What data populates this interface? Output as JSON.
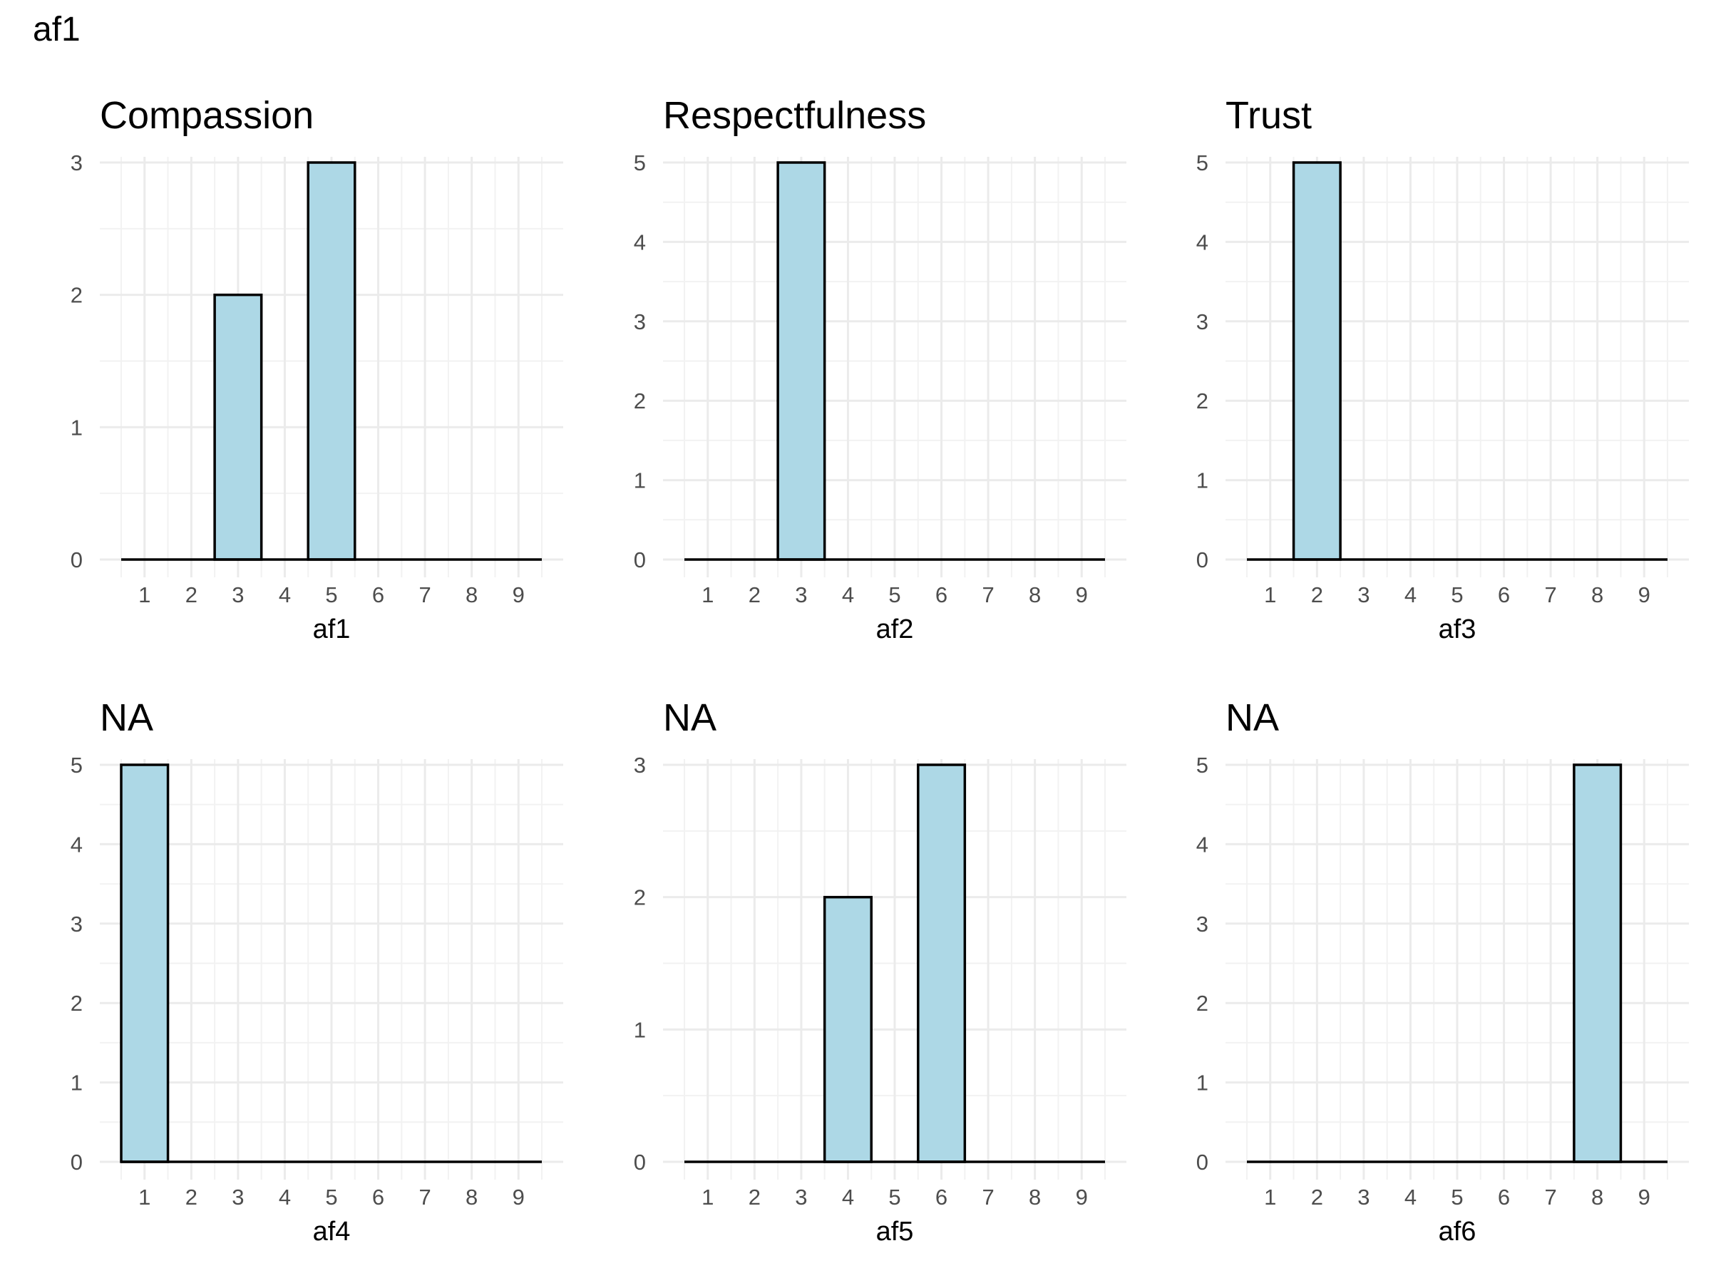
{
  "page_title": "af1",
  "colors": {
    "bar_fill": "#ADD8E6",
    "bar_stroke": "#000000",
    "grid_major": "#EBEBEB",
    "grid_minor": "#F2F2F2",
    "tick_text": "#4D4D4D"
  },
  "chart_data": [
    {
      "type": "bar",
      "title": "Compassion",
      "xlabel": "af1",
      "ylabel": "",
      "categories": [
        "1",
        "2",
        "3",
        "4",
        "5",
        "6",
        "7",
        "8",
        "9"
      ],
      "values": [
        0,
        0,
        2,
        0,
        3,
        0,
        0,
        0,
        0
      ],
      "yticks": [
        0,
        1,
        2,
        3
      ],
      "ylim": [
        0,
        3
      ],
      "grid": true
    },
    {
      "type": "bar",
      "title": "Respectfulness",
      "xlabel": "af2",
      "ylabel": "",
      "categories": [
        "1",
        "2",
        "3",
        "4",
        "5",
        "6",
        "7",
        "8",
        "9"
      ],
      "values": [
        0,
        0,
        5,
        0,
        0,
        0,
        0,
        0,
        0
      ],
      "yticks": [
        0,
        1,
        2,
        3,
        4,
        5
      ],
      "ylim": [
        0,
        5
      ],
      "grid": true
    },
    {
      "type": "bar",
      "title": "Trust",
      "xlabel": "af3",
      "ylabel": "",
      "categories": [
        "1",
        "2",
        "3",
        "4",
        "5",
        "6",
        "7",
        "8",
        "9"
      ],
      "values": [
        0,
        5,
        0,
        0,
        0,
        0,
        0,
        0,
        0
      ],
      "yticks": [
        0,
        1,
        2,
        3,
        4,
        5
      ],
      "ylim": [
        0,
        5
      ],
      "grid": true
    },
    {
      "type": "bar",
      "title": "NA",
      "xlabel": "af4",
      "ylabel": "",
      "categories": [
        "1",
        "2",
        "3",
        "4",
        "5",
        "6",
        "7",
        "8",
        "9"
      ],
      "values": [
        5,
        0,
        0,
        0,
        0,
        0,
        0,
        0,
        0
      ],
      "yticks": [
        0,
        1,
        2,
        3,
        4,
        5
      ],
      "ylim": [
        0,
        5
      ],
      "grid": true
    },
    {
      "type": "bar",
      "title": "NA",
      "xlabel": "af5",
      "ylabel": "",
      "categories": [
        "1",
        "2",
        "3",
        "4",
        "5",
        "6",
        "7",
        "8",
        "9"
      ],
      "values": [
        0,
        0,
        0,
        2,
        0,
        3,
        0,
        0,
        0
      ],
      "yticks": [
        0,
        1,
        2,
        3
      ],
      "ylim": [
        0,
        3
      ],
      "grid": true
    },
    {
      "type": "bar",
      "title": "NA",
      "xlabel": "af6",
      "ylabel": "",
      "categories": [
        "1",
        "2",
        "3",
        "4",
        "5",
        "6",
        "7",
        "8",
        "9"
      ],
      "values": [
        0,
        0,
        0,
        0,
        0,
        0,
        0,
        5,
        0
      ],
      "yticks": [
        0,
        1,
        2,
        3,
        4,
        5
      ],
      "ylim": [
        0,
        5
      ],
      "grid": true
    }
  ]
}
